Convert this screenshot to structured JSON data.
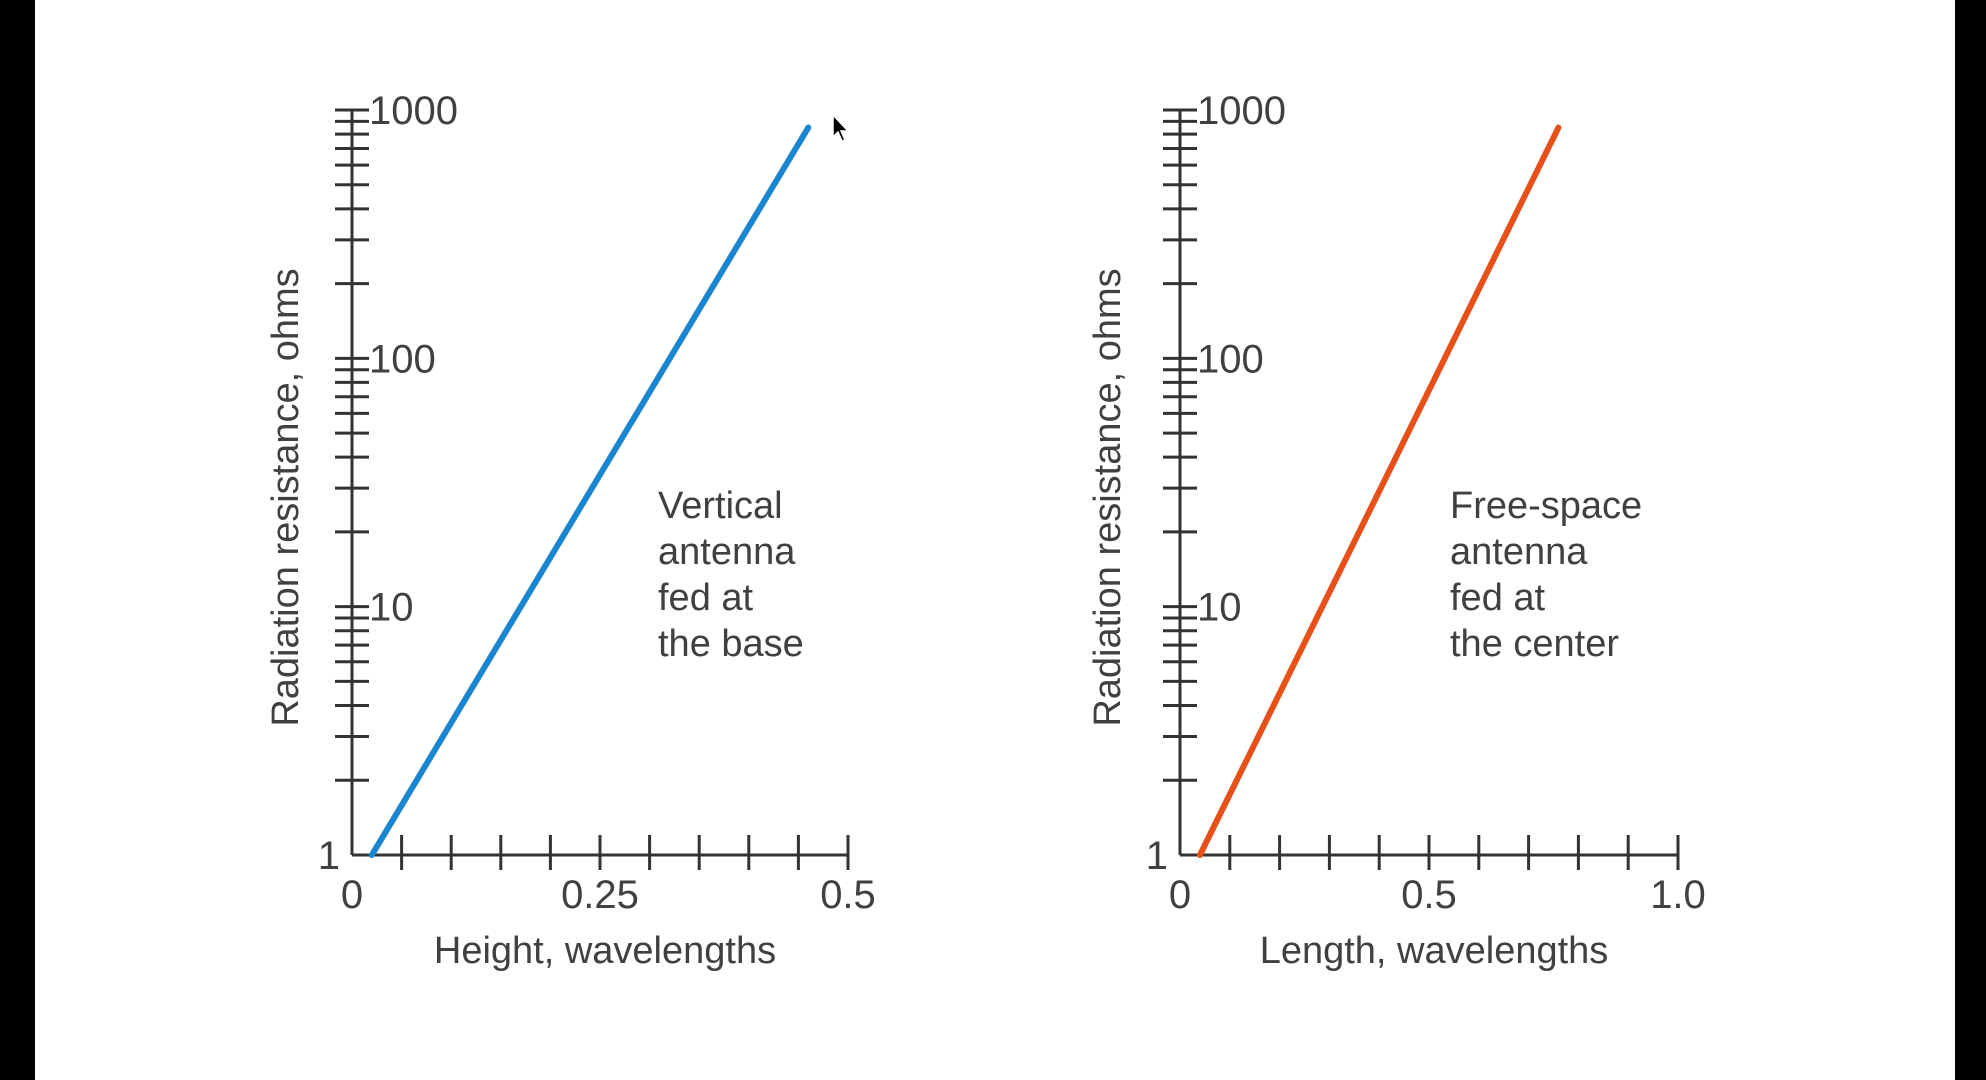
{
  "colors": {
    "background": "#ffffff",
    "frame": "#000000",
    "axis": "#333333",
    "text": "#404040"
  },
  "chart_data": [
    {
      "type": "line",
      "scale": {
        "x": "linear",
        "y": "log"
      },
      "xlabel": "Height, wavelengths",
      "ylabel": "Radiation resistance, ohms",
      "xlim": [
        0,
        0.5
      ],
      "ylim": [
        1,
        1000
      ],
      "x_tick_labels": [
        "0",
        "0.25",
        "0.5"
      ],
      "x_minor_step": 0.05,
      "y_tick_labels": [
        "1",
        "10",
        "100",
        "1000"
      ],
      "annotation": [
        "Vertical",
        "antenna",
        "fed at",
        "the base"
      ],
      "series": [
        {
          "color": "#1a86d0",
          "x": [
            0.02,
            0.46
          ],
          "y": [
            1,
            850
          ]
        }
      ]
    },
    {
      "type": "line",
      "scale": {
        "x": "linear",
        "y": "log"
      },
      "xlabel": "Length, wavelengths",
      "ylabel": "Radiation resistance, ohms",
      "xlim": [
        0,
        1.0
      ],
      "ylim": [
        1,
        1000
      ],
      "x_tick_labels": [
        "0",
        "0.5",
        "1.0"
      ],
      "x_minor_step": 0.1,
      "y_tick_labels": [
        "1",
        "10",
        "100",
        "1000"
      ],
      "annotation": [
        "Free-space",
        "antenna",
        "fed at",
        "the center"
      ],
      "series": [
        {
          "color": "#e8501a",
          "x": [
            0.04,
            0.76
          ],
          "y": [
            1,
            850
          ]
        }
      ]
    }
  ]
}
